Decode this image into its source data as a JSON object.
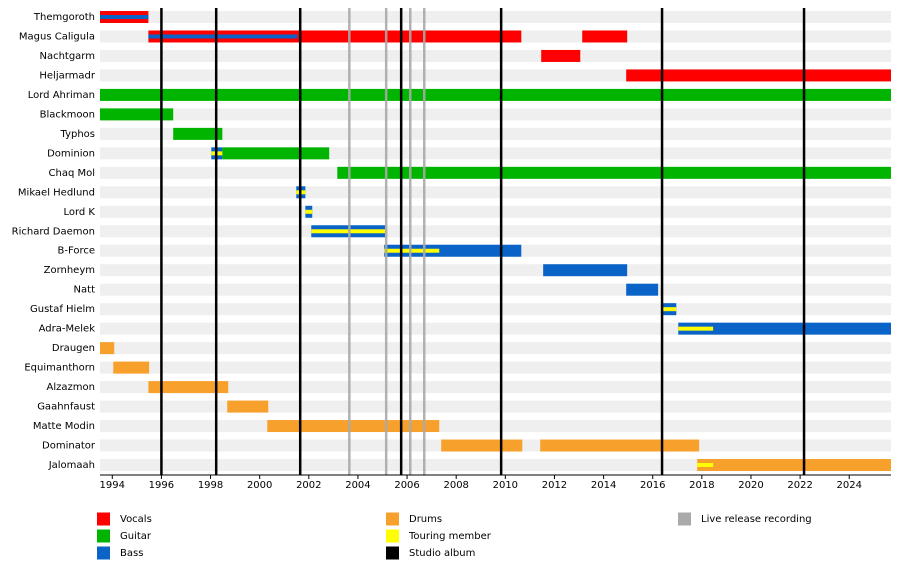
{
  "chart_data": {
    "type": "timeline",
    "xlim": [
      1993.5,
      2025.7
    ],
    "xticks": [
      1994,
      1996,
      1998,
      2000,
      2002,
      2004,
      2006,
      2008,
      2010,
      2012,
      2014,
      2016,
      2018,
      2020,
      2022,
      2024
    ],
    "roles": [
      {
        "name": "Vocals",
        "color": "#ff0000"
      },
      {
        "name": "Guitar",
        "color": "#00b400"
      },
      {
        "name": "Bass",
        "color": "#0a64c8"
      },
      {
        "name": "Drums",
        "color": "#f8a02c"
      },
      {
        "name": "Touring member",
        "color": "#ffff00"
      }
    ],
    "markers": [
      {
        "name": "Studio album",
        "color": "#000000",
        "x": [
          1996.0,
          1998.23,
          2001.65,
          2005.76,
          2009.83,
          2016.38,
          2022.16
        ]
      },
      {
        "name": "Live release recording",
        "color": "#aaaaaa",
        "x": [
          2003.65,
          2005.15,
          2006.13,
          2006.7
        ]
      }
    ],
    "members": [
      {
        "name": "Themgoroth",
        "bars": [
          {
            "color": "#ff0000",
            "start": 1993.5,
            "end": 1995.47
          }
        ],
        "stripes": [
          {
            "color": "#0a64c8",
            "start": 1993.5,
            "end": 1995.47
          }
        ]
      },
      {
        "name": "Magus Caligula",
        "bars": [
          {
            "color": "#ff0000",
            "start": 1995.47,
            "end": 2010.65
          },
          {
            "color": "#ff0000",
            "start": 2013.13,
            "end": 2014.96
          }
        ],
        "stripes": [
          {
            "color": "#0a64c8",
            "start": 1995.47,
            "end": 2001.53
          }
        ]
      },
      {
        "name": "Nachtgarm",
        "bars": [
          {
            "color": "#ff0000",
            "start": 2011.46,
            "end": 2013.05
          }
        ],
        "stripes": []
      },
      {
        "name": "Heljarmadr",
        "bars": [
          {
            "color": "#ff0000",
            "start": 2014.92,
            "end": 2025.7
          }
        ],
        "stripes": []
      },
      {
        "name": "Lord Ahriman",
        "bars": [
          {
            "color": "#00b400",
            "start": 1993.5,
            "end": 2025.7
          }
        ],
        "stripes": []
      },
      {
        "name": "Blackmoon",
        "bars": [
          {
            "color": "#00b400",
            "start": 1993.5,
            "end": 1996.48
          }
        ],
        "stripes": []
      },
      {
        "name": "Typhos",
        "bars": [
          {
            "color": "#00b400",
            "start": 1996.48,
            "end": 1998.48
          }
        ],
        "stripes": []
      },
      {
        "name": "Dominion",
        "bars": [
          {
            "color": "#0a64c8",
            "start": 1998.03,
            "end": 1998.48
          },
          {
            "color": "#00b400",
            "start": 1998.48,
            "end": 2002.83
          }
        ],
        "stripes": [
          {
            "color": "#ffff00",
            "start": 1998.03,
            "end": 1998.48
          }
        ]
      },
      {
        "name": "Chaq Mol",
        "bars": [
          {
            "color": "#00b400",
            "start": 2003.16,
            "end": 2025.7
          }
        ],
        "stripes": []
      },
      {
        "name": "Mikael Hedlund",
        "bars": [
          {
            "color": "#0a64c8",
            "start": 2001.49,
            "end": 2001.86
          }
        ],
        "stripes": [
          {
            "color": "#ffff00",
            "start": 2001.49,
            "end": 2001.86
          }
        ]
      },
      {
        "name": "Lord K",
        "bars": [
          {
            "color": "#0a64c8",
            "start": 2001.86,
            "end": 2002.14
          }
        ],
        "stripes": [
          {
            "color": "#ffff00",
            "start": 2001.86,
            "end": 2002.14
          }
        ]
      },
      {
        "name": "Richard Daemon",
        "bars": [
          {
            "color": "#0a64c8",
            "start": 2002.1,
            "end": 2005.11
          }
        ],
        "stripes": [
          {
            "color": "#ffff00",
            "start": 2002.1,
            "end": 2005.11
          }
        ]
      },
      {
        "name": "B-Force",
        "bars": [
          {
            "color": "#0a64c8",
            "start": 2005.07,
            "end": 2010.65
          }
        ],
        "stripes": [
          {
            "color": "#ffff00",
            "start": 2005.07,
            "end": 2007.31
          }
        ]
      },
      {
        "name": "Zornheym",
        "bars": [
          {
            "color": "#0a64c8",
            "start": 2011.54,
            "end": 2014.96
          }
        ],
        "stripes": []
      },
      {
        "name": "Natt",
        "bars": [
          {
            "color": "#0a64c8",
            "start": 2014.92,
            "end": 2016.22
          }
        ],
        "stripes": []
      },
      {
        "name": "Gustaf Hielm",
        "bars": [
          {
            "color": "#0a64c8",
            "start": 2016.34,
            "end": 2016.96
          }
        ],
        "stripes": [
          {
            "color": "#ffff00",
            "start": 2016.34,
            "end": 2016.96
          }
        ]
      },
      {
        "name": "Adra-Melek",
        "bars": [
          {
            "color": "#0a64c8",
            "start": 2017.04,
            "end": 2025.7
          }
        ],
        "stripes": [
          {
            "color": "#ffff00",
            "start": 2017.04,
            "end": 2018.46
          }
        ]
      },
      {
        "name": "Draugen",
        "bars": [
          {
            "color": "#f8a02c",
            "start": 1993.5,
            "end": 1994.08
          }
        ],
        "stripes": []
      },
      {
        "name": "Equimanthorn",
        "bars": [
          {
            "color": "#f8a02c",
            "start": 1994.04,
            "end": 1995.5
          }
        ],
        "stripes": []
      },
      {
        "name": "Alzazmon",
        "bars": [
          {
            "color": "#f8a02c",
            "start": 1995.47,
            "end": 1998.72
          }
        ],
        "stripes": []
      },
      {
        "name": "Gaahnfaust",
        "bars": [
          {
            "color": "#f8a02c",
            "start": 1998.68,
            "end": 2000.35
          }
        ],
        "stripes": []
      },
      {
        "name": "Matte Modin",
        "bars": [
          {
            "color": "#f8a02c",
            "start": 2000.31,
            "end": 2007.31
          }
        ],
        "stripes": []
      },
      {
        "name": "Dominator",
        "bars": [
          {
            "color": "#f8a02c",
            "start": 2007.39,
            "end": 2010.69
          },
          {
            "color": "#f8a02c",
            "start": 2011.42,
            "end": 2017.89
          }
        ],
        "stripes": []
      },
      {
        "name": "Jalomaah",
        "bars": [
          {
            "color": "#f8a02c",
            "start": 2017.81,
            "end": 2025.7
          }
        ],
        "stripes": [
          {
            "color": "#ffff00",
            "start": 2017.81,
            "end": 2018.46
          }
        ]
      }
    ]
  }
}
